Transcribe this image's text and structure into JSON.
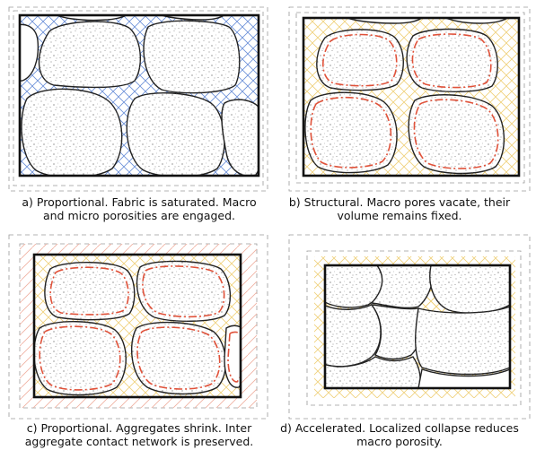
{
  "panels": [
    {
      "id": "a",
      "caption_line1": "a) Proportional. Fabric is saturated. Macro",
      "caption_line2": "and micro porosities are engaged.",
      "pore_fill": "blue-hatch",
      "aggregate_rim": "none"
    },
    {
      "id": "b",
      "caption_line1": "b) Structural. Macro pores vacate, their",
      "caption_line2": "volume remains fixed.",
      "pore_fill": "yellow-hatch",
      "aggregate_rim": "red-dash-dot"
    },
    {
      "id": "c",
      "caption_line1": "c) Proportional. Aggregates shrink. Inter",
      "caption_line2": "aggregate contact network is preserved.",
      "pore_fill": "yellow-hatch",
      "aggregate_rim": "red-dash-dot"
    },
    {
      "id": "d",
      "caption_line1": "d) Accelerated. Localized collapse reduces",
      "caption_line2": "macro porosity.",
      "pore_fill": "yellow-hatch",
      "aggregate_rim": "none"
    }
  ],
  "colors": {
    "outline": "#222222",
    "frame": "#111111",
    "dashed_guide": "#9a9a9a",
    "blue_hatch": "#6a8fd8",
    "yellow_hatch": "#efd07a",
    "red_rim": "#e0523a",
    "stipple": "#666666"
  }
}
